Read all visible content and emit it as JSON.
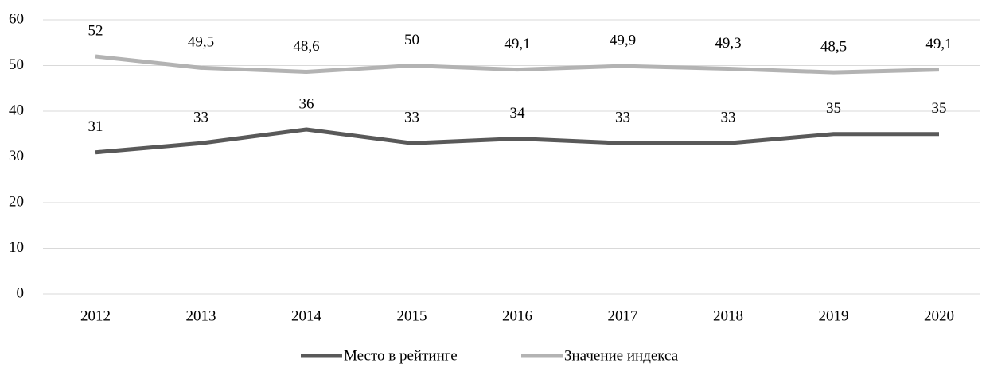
{
  "chart_data": {
    "type": "line",
    "categories": [
      "2012",
      "2013",
      "2014",
      "2015",
      "2016",
      "2017",
      "2018",
      "2019",
      "2020"
    ],
    "series": [
      {
        "name": "Место в рейтинге",
        "color": "#595959",
        "values": [
          31,
          33,
          36,
          33,
          34,
          33,
          33,
          35,
          35
        ]
      },
      {
        "name": "Значение индекса",
        "color": "#b3b3b3",
        "values": [
          52,
          49.5,
          48.6,
          50,
          49.1,
          49.9,
          49.3,
          48.5,
          49.1
        ],
        "value_labels": [
          "52",
          "49,5",
          "48,6",
          "50",
          "49,1",
          "49,9",
          "49,3",
          "48,5",
          "49,1"
        ]
      }
    ],
    "ylim": [
      0,
      60
    ],
    "yticks": [
      0,
      10,
      20,
      30,
      40,
      50,
      60
    ],
    "grid": true,
    "legend": "bottom"
  }
}
